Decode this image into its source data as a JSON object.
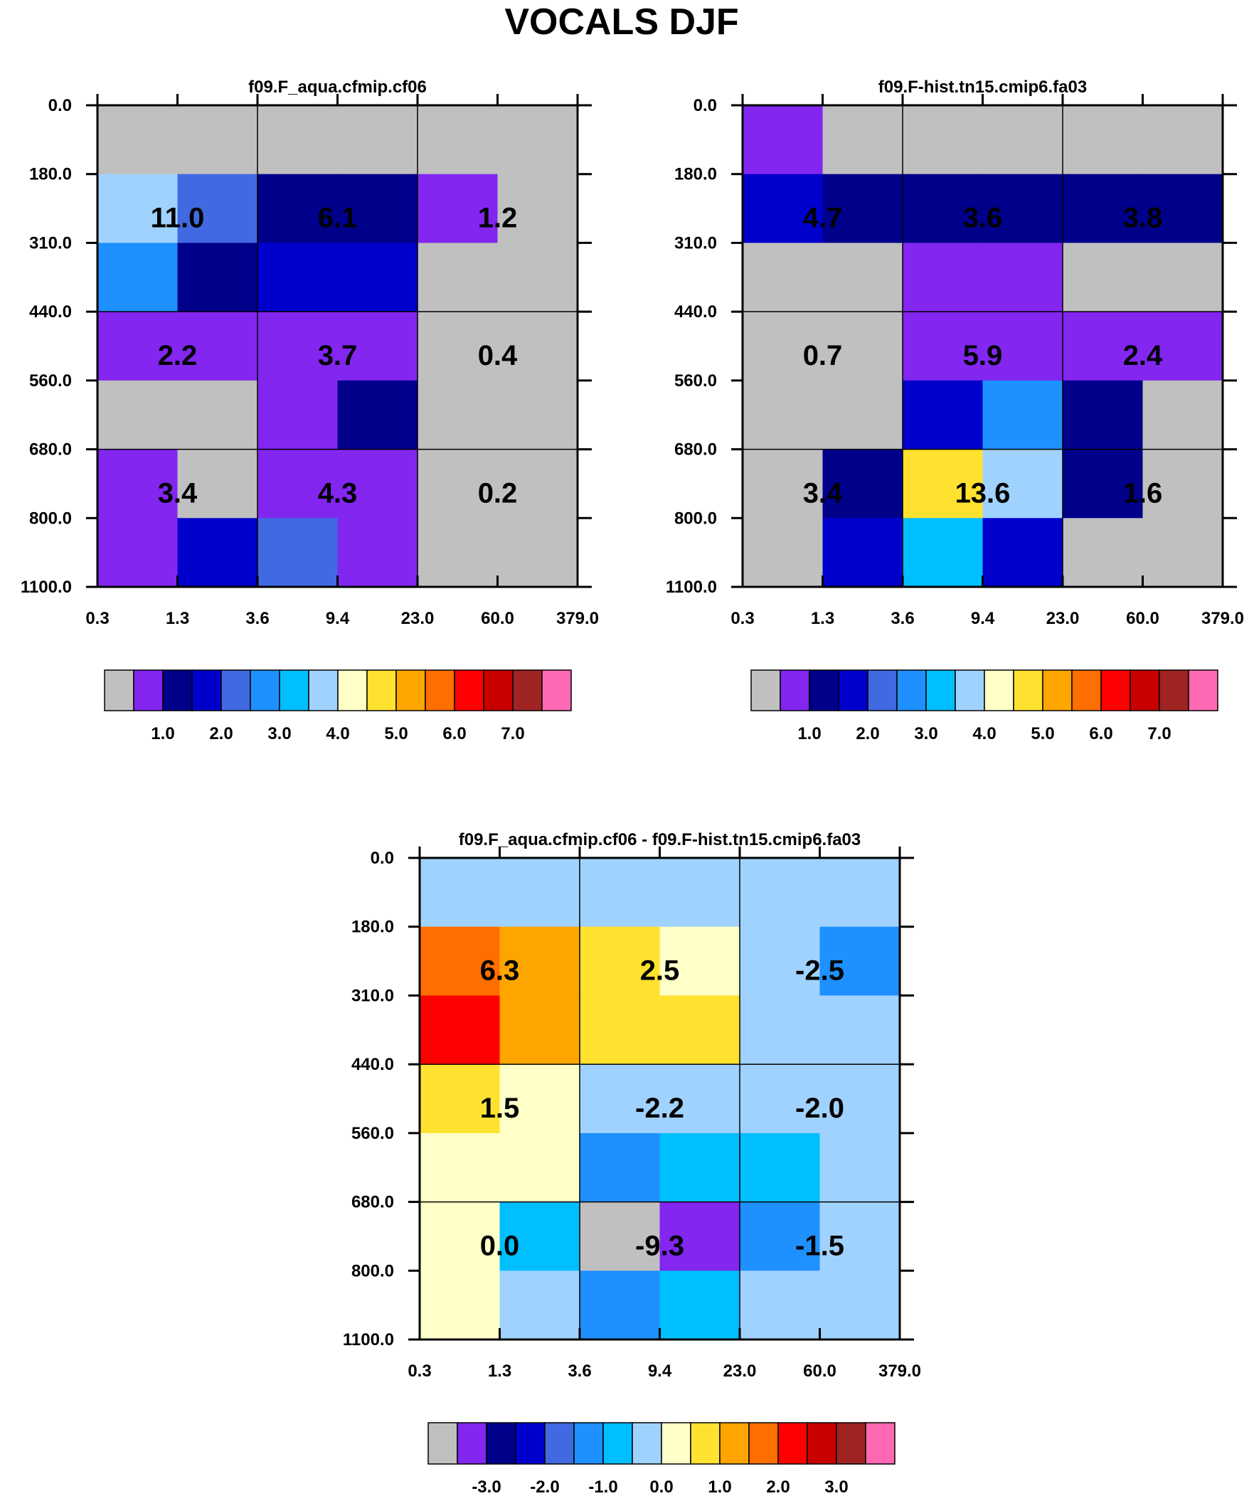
{
  "figure": {
    "title": "VOCALS DJF",
    "grid_color": "#000000",
    "panel_background": "#c0c0c0"
  },
  "chart_data": [
    {
      "type": "heatmap",
      "title": "f09.F_aqua.cfmip.cf06",
      "x_tick_labels": [
        "0.3",
        "1.3",
        "3.6",
        "9.4",
        "23.0",
        "60.0",
        "379.0"
      ],
      "y_tick_labels": [
        "0.0",
        "180.0",
        "310.0",
        "440.0",
        "560.0",
        "680.0",
        "800.0",
        "1100.0"
      ],
      "cell_color_index": [
        [
          0,
          0,
          0,
          0,
          0,
          0
        ],
        [
          7,
          4,
          2,
          2,
          1,
          0
        ],
        [
          5,
          2,
          3,
          3,
          0,
          0
        ],
        [
          1,
          1,
          1,
          1,
          0,
          0
        ],
        [
          0,
          0,
          1,
          2,
          0,
          0
        ],
        [
          1,
          0,
          1,
          1,
          0,
          0
        ],
        [
          1,
          3,
          4,
          1,
          0,
          0
        ]
      ],
      "block_labels": [
        [
          "11.0",
          "6.1",
          "1.2"
        ],
        [
          "2.2",
          "3.7",
          "0.4"
        ],
        [
          "3.4",
          "4.3",
          "0.2"
        ]
      ],
      "colorbar": {
        "colors": [
          "#c0c0c0",
          "#8226f0",
          "#00008b",
          "#0000cd",
          "#4169e1",
          "#1e90ff",
          "#00bfff",
          "#a0d2ff",
          "#ffffc8",
          "#ffe130",
          "#ffa500",
          "#ff6e00",
          "#ff0000",
          "#c80000",
          "#a02323",
          "#ff69b4"
        ],
        "tick_labels": [
          "1.0",
          "2.0",
          "3.0",
          "4.0",
          "5.0",
          "6.0",
          "7.0"
        ],
        "tick_boundary_index": [
          2,
          4,
          6,
          8,
          10,
          12,
          14
        ]
      }
    },
    {
      "type": "heatmap",
      "title": "f09.F-hist.tn15.cmip6.fa03",
      "x_tick_labels": [
        "0.3",
        "1.3",
        "3.6",
        "9.4",
        "23.0",
        "60.0",
        "379.0"
      ],
      "y_tick_labels": [
        "0.0",
        "180.0",
        "310.0",
        "440.0",
        "560.0",
        "680.0",
        "800.0",
        "1100.0"
      ],
      "cell_color_index": [
        [
          1,
          0,
          0,
          0,
          0,
          0
        ],
        [
          3,
          2,
          2,
          2,
          2,
          2
        ],
        [
          0,
          0,
          1,
          1,
          0,
          0
        ],
        [
          0,
          0,
          1,
          1,
          1,
          1
        ],
        [
          0,
          0,
          3,
          5,
          2,
          0
        ],
        [
          0,
          2,
          9,
          7,
          2,
          0
        ],
        [
          0,
          3,
          6,
          3,
          0,
          0
        ]
      ],
      "block_labels": [
        [
          "4.7",
          "3.6",
          "3.8"
        ],
        [
          "0.7",
          "5.9",
          "2.4"
        ],
        [
          "3.4",
          "13.6",
          "1.6"
        ]
      ],
      "colorbar": {
        "colors": [
          "#c0c0c0",
          "#8226f0",
          "#00008b",
          "#0000cd",
          "#4169e1",
          "#1e90ff",
          "#00bfff",
          "#a0d2ff",
          "#ffffc8",
          "#ffe130",
          "#ffa500",
          "#ff6e00",
          "#ff0000",
          "#c80000",
          "#a02323",
          "#ff69b4"
        ],
        "tick_labels": [
          "1.0",
          "2.0",
          "3.0",
          "4.0",
          "5.0",
          "6.0",
          "7.0"
        ],
        "tick_boundary_index": [
          2,
          4,
          6,
          8,
          10,
          12,
          14
        ]
      }
    },
    {
      "type": "heatmap",
      "title": "f09.F_aqua.cfmip.cf06 - f09.F-hist.tn15.cmip6.fa03",
      "x_tick_labels": [
        "0.3",
        "1.3",
        "3.6",
        "9.4",
        "23.0",
        "60.0",
        "379.0"
      ],
      "y_tick_labels": [
        "0.0",
        "180.0",
        "310.0",
        "440.0",
        "560.0",
        "680.0",
        "800.0",
        "1100.0"
      ],
      "cell_color_index": [
        [
          7,
          7,
          7,
          7,
          7,
          7
        ],
        [
          11,
          10,
          9,
          8,
          7,
          5
        ],
        [
          12,
          10,
          9,
          9,
          7,
          7
        ],
        [
          9,
          8,
          7,
          7,
          7,
          7
        ],
        [
          8,
          8,
          5,
          6,
          6,
          7
        ],
        [
          8,
          6,
          0,
          1,
          5,
          7
        ],
        [
          8,
          7,
          5,
          6,
          7,
          7
        ]
      ],
      "block_labels": [
        [
          "6.3",
          "2.5",
          "-2.5"
        ],
        [
          "1.5",
          "-2.2",
          "-2.0"
        ],
        [
          "0.0",
          "-9.3",
          "-1.5"
        ]
      ],
      "colorbar": {
        "colors": [
          "#c0c0c0",
          "#8226f0",
          "#00008b",
          "#0000cd",
          "#4169e1",
          "#1e90ff",
          "#00bfff",
          "#a0d2ff",
          "#ffffc8",
          "#ffe130",
          "#ffa500",
          "#ff6e00",
          "#ff0000",
          "#c80000",
          "#a02323",
          "#ff69b4"
        ],
        "tick_labels": [
          "-3.0",
          "-2.0",
          "-1.0",
          "0.0",
          "1.0",
          "2.0",
          "3.0"
        ],
        "tick_boundary_index": [
          2,
          4,
          6,
          8,
          10,
          12,
          14
        ]
      }
    }
  ]
}
